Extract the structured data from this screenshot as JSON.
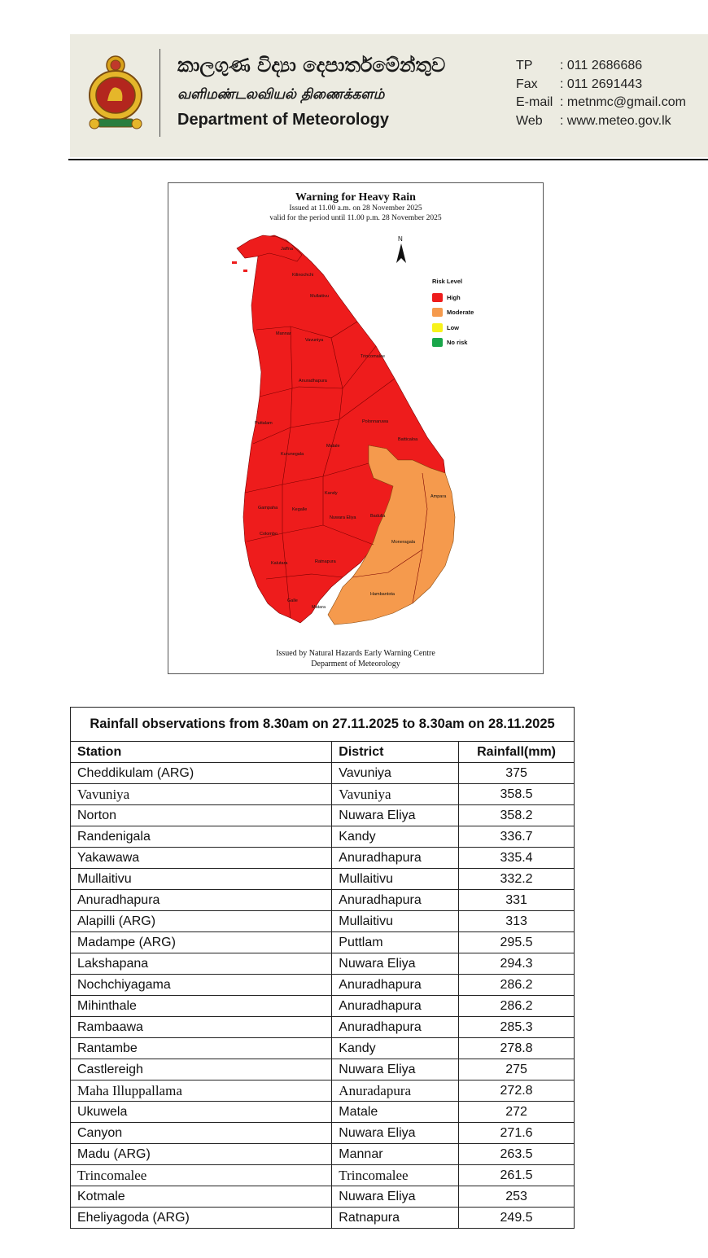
{
  "letterhead": {
    "sinhala_name": "කාලගුණ විද්‍යා දෙපාර්තමේන්තුව",
    "tamil_name": "வளிமண்டலவியல் திணைக்களம்",
    "english_name": "Department of Meteorology",
    "contacts": [
      {
        "key": "TP",
        "value": ": 011 2686686"
      },
      {
        "key": "Fax",
        "value": ": 011 2691443"
      },
      {
        "key": "E-mail",
        "value": ": metnmc@gmail.com"
      },
      {
        "key": "Web",
        "value": ": www.meteo.gov.lk"
      }
    ]
  },
  "map": {
    "title": "Warning  for Heavy Rain",
    "issued": "Issued at 11.00 a.m. on 28 November 2025",
    "valid": "valid for the period until 11.00 p.m. 28 November 2025",
    "north": "N",
    "legend_title": "Risk Level",
    "legend": [
      {
        "label": "High",
        "color": "#ee1c1c"
      },
      {
        "label": "Moderate",
        "color": "#f59a4d"
      },
      {
        "label": "Low",
        "color": "#f7f21b"
      },
      {
        "label": "No risk",
        "color": "#19a64a"
      }
    ],
    "districts_high": [
      "Jaffna",
      "Kilinochchi",
      "Mullaitivu",
      "Mannar",
      "Vavuniya",
      "Trincomalee",
      "Anuradhapura",
      "Polonnaruwa",
      "Puttalam",
      "Batticaloa",
      "Kurunegala",
      "Matale",
      "Kandy",
      "Gampaha",
      "Kegalle",
      "Nuwara Eliya",
      "Badulla",
      "Colombo",
      "Kalutara",
      "Ratnapura",
      "Galle",
      "Matara"
    ],
    "districts_moderate": [
      "Ampara",
      "Moneragala",
      "Hambantota"
    ],
    "footer1": "Issued by Natural Hazards Early Warning Centre",
    "footer2": "Deparment of Meteorology"
  },
  "table": {
    "caption": "Rainfall observations from 8.30am on 27.11.2025 to 8.30am on 28.11.2025",
    "headers": [
      "Station",
      "District",
      "Rainfall(mm)"
    ],
    "rows": [
      {
        "station": "Cheddikulam (ARG)",
        "district": "Vavuniya",
        "rainfall": "375"
      },
      {
        "station": "Vavuniya",
        "district": "Vavuniya",
        "rainfall": "358.5"
      },
      {
        "station": "Norton",
        "district": "Nuwara Eliya",
        "rainfall": "358.2"
      },
      {
        "station": "Randenigala",
        "district": "Kandy",
        "rainfall": "336.7"
      },
      {
        "station": "Yakawawa",
        "district": "Anuradhapura",
        "rainfall": "335.4"
      },
      {
        "station": "Mullaitivu",
        "district": "Mullaitivu",
        "rainfall": "332.2"
      },
      {
        "station": "Anuradhapura",
        "district": "Anuradhapura",
        "rainfall": "331"
      },
      {
        "station": "Alapilli (ARG)",
        "district": "Mullaitivu",
        "rainfall": "313"
      },
      {
        "station": "Madampe (ARG)",
        "district": "Puttlam",
        "rainfall": "295.5"
      },
      {
        "station": "Lakshapana",
        "district": "Nuwara Eliya",
        "rainfall": "294.3"
      },
      {
        "station": "Nochchiyagama",
        "district": "Anuradhapura",
        "rainfall": "286.2"
      },
      {
        "station": " Mihinthale",
        "district": "Anuradhapura",
        "rainfall": "286.2"
      },
      {
        "station": "Rambaawa",
        "district": "Anuradhapura",
        "rainfall": "285.3"
      },
      {
        "station": "Rantambe",
        "district": "Kandy",
        "rainfall": "278.8"
      },
      {
        "station": "Castlereigh",
        "district": "Nuwara Eliya",
        "rainfall": "275"
      },
      {
        "station": "Maha Illuppallama",
        "district": "Anuradapura",
        "rainfall": "272.8"
      },
      {
        "station": "Ukuwela",
        "district": "Matale",
        "rainfall": "272"
      },
      {
        "station": "Canyon",
        "district": "Nuwara Eliya",
        "rainfall": "271.6"
      },
      {
        "station": "Madu (ARG)",
        "district": "Mannar",
        "rainfall": "263.5"
      },
      {
        "station": "Trincomalee",
        "district": "Trincomalee",
        "rainfall": "261.5"
      },
      {
        "station": "Kotmale",
        "district": "Nuwara Eliya",
        "rainfall": "253"
      },
      {
        "station": "Eheliyagoda (ARG)",
        "district": "Ratnapura",
        "rainfall": "249.5"
      }
    ]
  }
}
